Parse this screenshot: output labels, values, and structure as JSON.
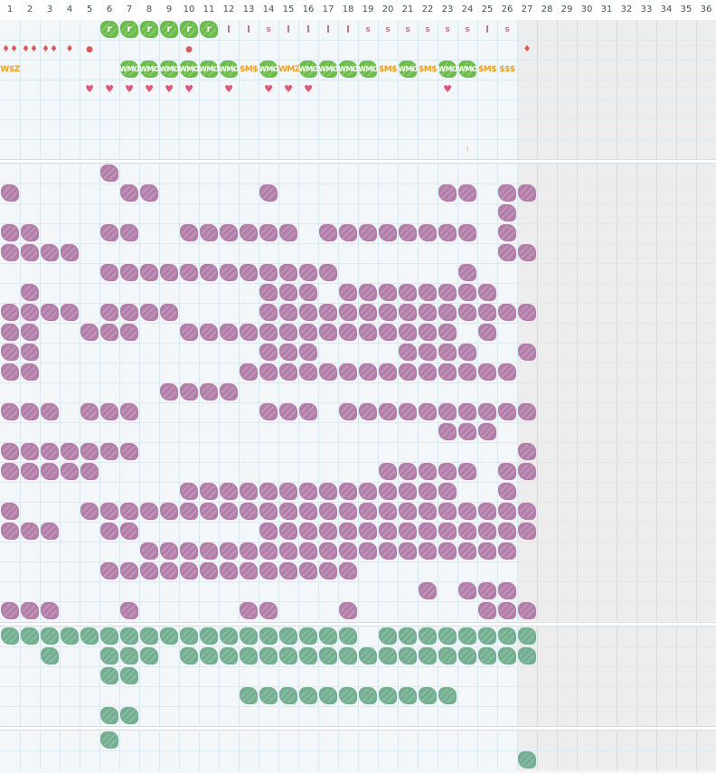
{
  "columns": [
    "1",
    "2",
    "3",
    "4",
    "5",
    "6",
    "7",
    "8",
    "9",
    "10",
    "11",
    "12",
    "13",
    "14",
    "15",
    "16",
    "17",
    "18",
    "19",
    "20",
    "21",
    "22",
    "23",
    "24",
    "25",
    "26",
    "27",
    "28",
    "29",
    "30",
    "31",
    "32",
    "33",
    "34",
    "35",
    "36"
  ],
  "active_columns": 26,
  "colors": {
    "purple_tile": "#b27ea9",
    "teal_tile": "#72ae8f",
    "green_tile": "#6cbc4c",
    "red_icon": "#d65c5c",
    "pink_heart": "#e0577a",
    "orange_text": "#f0a020",
    "mauve_text": "#b77c89",
    "grid_line": "#d9e8f0",
    "inactive_area": "#ededed"
  },
  "top_band": {
    "rows": [
      [
        {
          "c": 6,
          "t": "green",
          "label": "r"
        },
        {
          "c": 7,
          "t": "green",
          "label": "r"
        },
        {
          "c": 8,
          "t": "green",
          "label": "r"
        },
        {
          "c": 9,
          "t": "green",
          "label": "r"
        },
        {
          "c": 10,
          "t": "green",
          "label": "r"
        },
        {
          "c": 11,
          "t": "green",
          "label": "r"
        },
        {
          "c": 12,
          "t": "bar",
          "label": "I"
        },
        {
          "c": 13,
          "t": "bar",
          "label": "I"
        },
        {
          "c": 14,
          "t": "s",
          "label": "s"
        },
        {
          "c": 15,
          "t": "bar",
          "label": "I"
        },
        {
          "c": 16,
          "t": "bar",
          "label": "I"
        },
        {
          "c": 17,
          "t": "bar",
          "label": "I"
        },
        {
          "c": 18,
          "t": "bar",
          "label": "I"
        },
        {
          "c": 19,
          "t": "s",
          "label": "s"
        },
        {
          "c": 20,
          "t": "s",
          "label": "s"
        },
        {
          "c": 21,
          "t": "s",
          "label": "s"
        },
        {
          "c": 22,
          "t": "s",
          "label": "s"
        },
        {
          "c": 23,
          "t": "s",
          "label": "s"
        },
        {
          "c": 24,
          "t": "s",
          "label": "s"
        },
        {
          "c": 25,
          "t": "bar",
          "label": "I"
        },
        {
          "c": 26,
          "t": "s",
          "label": "s"
        }
      ],
      [
        {
          "c": 1,
          "t": "drop",
          "label": "♦♦"
        },
        {
          "c": 2,
          "t": "drop",
          "label": "♦♦"
        },
        {
          "c": 3,
          "t": "drop",
          "label": "♦♦"
        },
        {
          "c": 4,
          "t": "drop",
          "label": "♦"
        },
        {
          "c": 5,
          "t": "dot",
          "label": "●"
        },
        {
          "c": 10,
          "t": "dot",
          "label": "●"
        },
        {
          "c": 27,
          "t": "drop",
          "label": "♦"
        }
      ],
      [
        {
          "c": 1,
          "t": "orange",
          "label": "W$Z"
        },
        {
          "c": 7,
          "t": "wmo",
          "label": "WMO"
        },
        {
          "c": 8,
          "t": "wmo",
          "label": "WMO"
        },
        {
          "c": 9,
          "t": "wmo",
          "label": "WMO"
        },
        {
          "c": 10,
          "t": "wmo",
          "label": "WMO"
        },
        {
          "c": 11,
          "t": "wmo",
          "label": "WMO"
        },
        {
          "c": 12,
          "t": "wmo",
          "label": "WMO"
        },
        {
          "c": 13,
          "t": "orange",
          "label": "$M$"
        },
        {
          "c": 14,
          "t": "wmo",
          "label": "WMO"
        },
        {
          "c": 15,
          "t": "orange",
          "label": "WMZ"
        },
        {
          "c": 16,
          "t": "wmo",
          "label": "WMO"
        },
        {
          "c": 17,
          "t": "wmo",
          "label": "WMO"
        },
        {
          "c": 18,
          "t": "wmo",
          "label": "WMO"
        },
        {
          "c": 19,
          "t": "wmo",
          "label": "WMO"
        },
        {
          "c": 20,
          "t": "orange",
          "label": "$M$"
        },
        {
          "c": 21,
          "t": "wmo",
          "label": "WMO"
        },
        {
          "c": 22,
          "t": "orange",
          "label": "$M$"
        },
        {
          "c": 23,
          "t": "wmo",
          "label": "WMO"
        },
        {
          "c": 24,
          "t": "wmo",
          "label": "WMO"
        },
        {
          "c": 25,
          "t": "orange",
          "label": "$M$"
        },
        {
          "c": 26,
          "t": "orange",
          "label": "$$$"
        }
      ],
      [
        {
          "c": 5,
          "t": "heart",
          "label": "♥"
        },
        {
          "c": 6,
          "t": "heart",
          "label": "♥"
        },
        {
          "c": 7,
          "t": "heart",
          "label": "♥"
        },
        {
          "c": 8,
          "t": "heart",
          "label": "♥"
        },
        {
          "c": 9,
          "t": "heart",
          "label": "♥"
        },
        {
          "c": 10,
          "t": "heart",
          "label": "♥"
        },
        {
          "c": 12,
          "t": "heart",
          "label": "♥"
        },
        {
          "c": 14,
          "t": "heart",
          "label": "♥"
        },
        {
          "c": 15,
          "t": "heart",
          "label": "♥"
        },
        {
          "c": 16,
          "t": "heart",
          "label": "♥"
        },
        {
          "c": 23,
          "t": "heart",
          "label": "♥"
        }
      ],
      [],
      [],
      [
        {
          "c": 24,
          "t": "tick",
          "label": "ı"
        }
      ]
    ]
  },
  "purple_band": {
    "rows": [
      "     X                    ",
      "X     XX     X        XX XX",
      "                         X ",
      "XX   XX  XXXXXX XXXXXXXX X ",
      "XXXX                     XX",
      "     XXXXXXXXXXXX      X   ",
      " X           XXX XXXXXXXX  ",
      "XXXX XXXX    XXXXXXXXXXXXXX",
      "XX  XXX  XXXXXXXXXXXXXX X  ",
      "XX           XXX    XXXX  X",
      "XX          XXXXXXXXXXXXXX ",
      "        XXXX               ",
      "XXX XXX      XXX XXXXXXXXXX",
      "                      XXX  ",
      "XXXXXXX                   X",
      "XXXXX              XXXXX XX",
      "         XXXXXXXXXXXXXX  X ",
      "X   XXXXXXXXXXXXXXXXXXXXXXX",
      "XXX  XX      XXXXXXXXXXXXXX",
      "       XXXXXXXXXXXXXXXXXXX ",
      "     XXXXXXXXXXXXX         ",
      "                     X XXX ",
      "XXX   X     XX   X      XXX"
    ]
  },
  "teal_band": {
    "rows": [
      "XXXXXXXXXXXXXXXXXX XXXXXXXX",
      "  X  XXX XXXXXXXXXXXXXXXXXX",
      "     XX                    ",
      "            XXXXXXXXXXX    ",
      "     XX                    "
    ]
  },
  "bottom_band": {
    "rows": [
      "     X                     ",
      "                          X"
    ]
  }
}
